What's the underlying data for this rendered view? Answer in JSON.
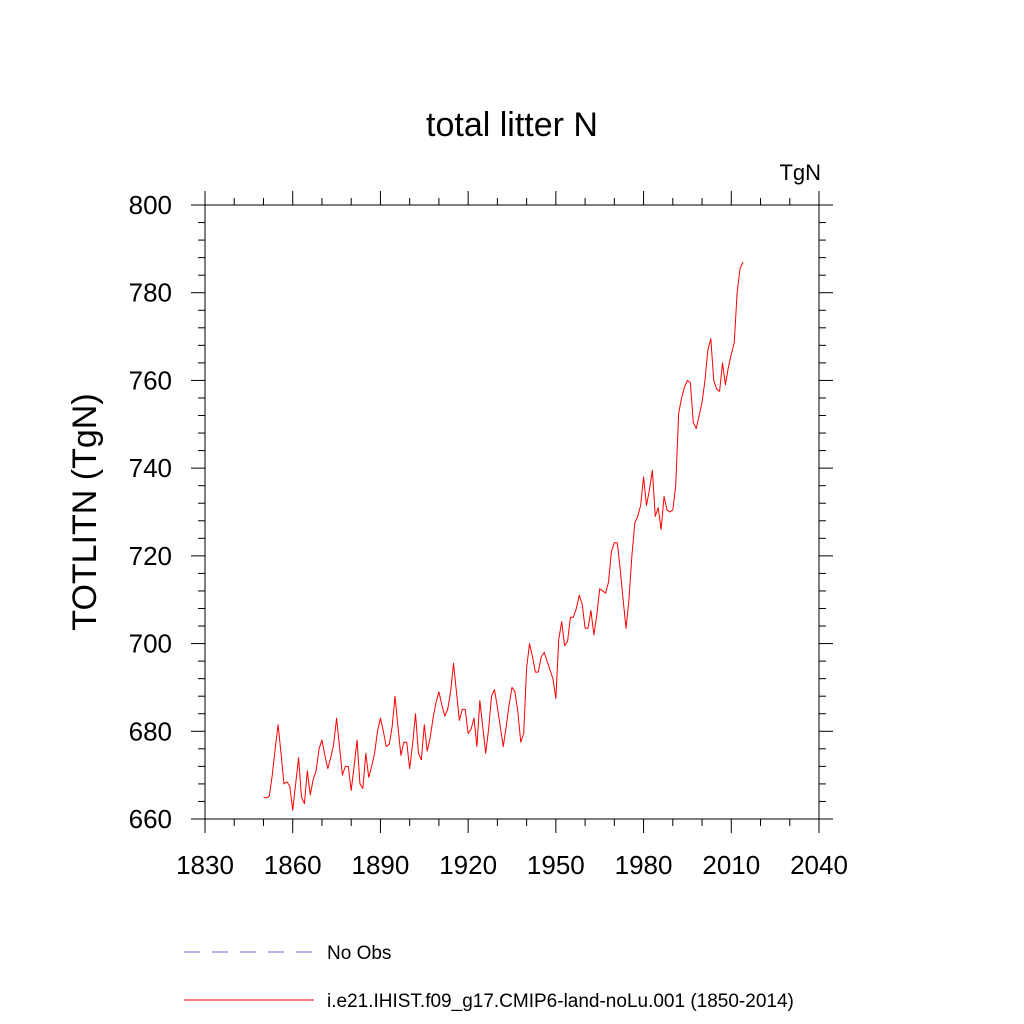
{
  "chart_data": {
    "type": "line",
    "title": "total litter N",
    "units": "TgN",
    "ylabel": "TOTLITN  (TgN)",
    "xlabel": "",
    "xlim": [
      1830,
      2040
    ],
    "ylim": [
      660,
      800
    ],
    "xticks": [
      1830,
      1860,
      1890,
      1920,
      1950,
      1980,
      2010,
      2040
    ],
    "yticks": [
      660,
      680,
      700,
      720,
      740,
      760,
      780,
      800
    ],
    "x_start": 1850,
    "x_end": 2014,
    "series": [
      {
        "name": "No Obs",
        "color": "#6a6acd",
        "dash": "dashed",
        "values": []
      },
      {
        "name": "i.e21.IHIST.f09_g17.CMIP6-land-noLu.001 (1850-2014)",
        "color": "#ff0000",
        "dash": "solid",
        "values": [
          665,
          664.8,
          665.2,
          670,
          676,
          681.5,
          675,
          668,
          668.5,
          667.5,
          662,
          668,
          674,
          665,
          663.5,
          671,
          665.5,
          669,
          671,
          676,
          678,
          674.5,
          671.5,
          674,
          677,
          683,
          676.5,
          670,
          672,
          672,
          666.5,
          672,
          678,
          668,
          667,
          675,
          669.5,
          672,
          675,
          680,
          683,
          680,
          676.5,
          677,
          681,
          688,
          681,
          674.5,
          677.5,
          677.5,
          671.5,
          677,
          684,
          675,
          673.5,
          681.5,
          675.5,
          678.5,
          683,
          686.5,
          689,
          686,
          683.5,
          685,
          689,
          695.5,
          689,
          682.5,
          685,
          685,
          679.5,
          680.5,
          683,
          676.5,
          687,
          681,
          675,
          680.5,
          688,
          689.5,
          685.5,
          681,
          676.5,
          681,
          686,
          690,
          689,
          684.5,
          677.5,
          679.5,
          694.5,
          700,
          697,
          693.5,
          693.5,
          697,
          698,
          696,
          694,
          692,
          687.5,
          701,
          705,
          699.5,
          700.5,
          706,
          706,
          708,
          711,
          709,
          703.5,
          703.5,
          707.5,
          702,
          706.5,
          712.5,
          712,
          711.5,
          714,
          721,
          723,
          723,
          717,
          710,
          703.5,
          710,
          720,
          727.5,
          729,
          731.5,
          738,
          731.5,
          735,
          739.5,
          729,
          731,
          726,
          733.5,
          730.5,
          730,
          730.5,
          736,
          752.5,
          756,
          758.5,
          760,
          759.5,
          750.5,
          749,
          752,
          755,
          760,
          767,
          769.5,
          760,
          758,
          757.5,
          764,
          759,
          763,
          766,
          768.5,
          780,
          785.5,
          787
        ]
      }
    ],
    "legend_placement": "bottom",
    "grid": false
  }
}
